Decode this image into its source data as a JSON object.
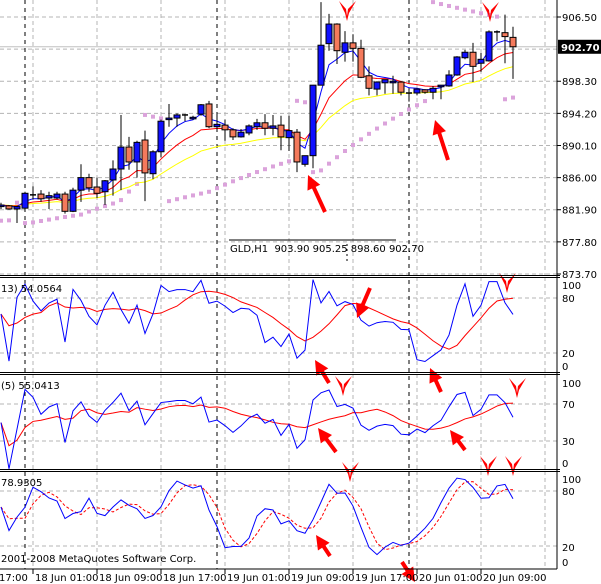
{
  "symbol_info": "GLD,H1  903.90 905.25 898.60 902.70",
  "copyright": "2001-2008 MetaQuotes Software Corp.",
  "price_axis": {
    "labels": [
      "906.50",
      "898.30",
      "894.20",
      "890.10",
      "886.00",
      "881.90",
      "877.80",
      "873.70"
    ],
    "current_price": "902.70"
  },
  "time_axis": {
    "labels": [
      "17:00",
      "18 Jun 01:00",
      "18 Jun 09:00",
      "18 Jun 17:00",
      "19 Jun 01:00",
      "19 Jun 09:00",
      "19 Jun 17:00",
      "20 Jun 01:00",
      "20 Jun 09:00"
    ]
  },
  "indicators": [
    {
      "label": "13) 54.0564",
      "axis_labels": [
        "100",
        "80",
        "20",
        "0"
      ],
      "levels": [
        20,
        80
      ]
    },
    {
      "label": "(5) 55.0413",
      "axis_labels": [
        "100",
        "70",
        "30",
        "0"
      ],
      "levels": [
        30,
        70
      ]
    },
    {
      "label": "78.9305",
      "axis_labels": [
        "100",
        "80",
        "20",
        "0"
      ],
      "levels": [
        20,
        80
      ]
    }
  ],
  "colors": {
    "bull_candle": "#1010ff",
    "bear_candle": "#f47a5c",
    "fast_ma": "#0000ff",
    "mid_ma": "#ff0000",
    "slow_ma": "#ffff00",
    "sar_dots": "#dba3db",
    "annotation_arrows": "#ff0000",
    "grid": "#b4b4b4"
  },
  "chart_data": {
    "type": "candlestick",
    "title": "GLD,H1",
    "ylim": [
      873.7,
      906.5
    ],
    "grid": true,
    "bar_interval": "1 hour",
    "ohlc_fields": [
      "open",
      "high",
      "low",
      "close"
    ],
    "ohlc": [
      [
        882.3,
        882.8,
        882.0,
        882.5
      ],
      [
        882.4,
        882.5,
        881.9,
        882.0
      ],
      [
        882.0,
        882.4,
        880.2,
        882.3
      ],
      [
        882.1,
        884.2,
        881.9,
        884.0
      ],
      [
        883.8,
        884.9,
        883.2,
        883.8
      ],
      [
        883.9,
        884.4,
        882.9,
        883.3
      ],
      [
        883.4,
        884.2,
        882.0,
        883.7
      ],
      [
        883.4,
        884.2,
        883.2,
        883.9
      ],
      [
        883.9,
        884.2,
        881.4,
        881.7
      ],
      [
        881.7,
        884.7,
        881.6,
        884.4
      ],
      [
        884.4,
        887.7,
        882.9,
        886.0
      ],
      [
        886.0,
        886.5,
        884.2,
        884.7
      ],
      [
        884.8,
        886.0,
        883.4,
        884.0
      ],
      [
        884.2,
        885.7,
        882.5,
        885.6
      ],
      [
        885.7,
        888.2,
        883.7,
        887.1
      ],
      [
        887.1,
        894.0,
        884.4,
        889.9
      ],
      [
        889.9,
        891.2,
        887.0,
        888.0
      ],
      [
        888.0,
        890.7,
        886.0,
        890.5
      ],
      [
        890.8,
        892.0,
        883.0,
        886.6
      ],
      [
        886.5,
        889.5,
        885.8,
        889.3
      ],
      [
        889.3,
        893.4,
        888.6,
        893.2
      ],
      [
        893.4,
        895.4,
        892.5,
        893.6
      ],
      [
        893.6,
        894.2,
        892.5,
        894.0
      ],
      [
        894.0,
        894.1,
        893.2,
        894.0
      ],
      [
        893.5,
        893.9,
        893.4,
        893.7
      ],
      [
        894.1,
        895.4,
        893.9,
        895.3
      ],
      [
        895.4,
        895.8,
        892.3,
        892.5
      ],
      [
        892.5,
        894.2,
        892.0,
        892.8
      ],
      [
        892.7,
        893.4,
        890.7,
        892.1
      ],
      [
        892.1,
        892.3,
        890.8,
        891.2
      ],
      [
        891.2,
        892.2,
        891.1,
        891.8
      ],
      [
        891.7,
        892.8,
        891.4,
        892.6
      ],
      [
        892.5,
        893.5,
        892.1,
        893.0
      ],
      [
        893.0,
        894.1,
        891.4,
        892.3
      ],
      [
        892.3,
        894.0,
        891.4,
        892.6
      ],
      [
        892.7,
        893.9,
        889.5,
        891.2
      ],
      [
        891.1,
        893.9,
        889.4,
        892.0
      ],
      [
        891.8,
        892.2,
        886.7,
        888.0
      ],
      [
        887.7,
        888.8,
        887.4,
        888.8
      ],
      [
        888.8,
        897.8,
        887.2,
        897.8
      ],
      [
        897.8,
        908.4,
        897.8,
        902.9
      ],
      [
        903.1,
        906.9,
        902.2,
        905.6
      ],
      [
        905.6,
        905.7,
        900.5,
        902.2
      ],
      [
        902.0,
        904.7,
        900.8,
        903.2
      ],
      [
        903.2,
        904.3,
        900.8,
        902.5
      ],
      [
        902.5,
        903.6,
        898.7,
        898.8
      ],
      [
        899.0,
        900.2,
        896.5,
        897.4
      ],
      [
        897.3,
        898.3,
        896.5,
        898.2
      ],
      [
        898.1,
        898.5,
        896.7,
        898.5
      ],
      [
        898.1,
        899.0,
        896.7,
        898.3
      ],
      [
        898.2,
        898.3,
        896.5,
        896.9
      ],
      [
        896.8,
        896.9,
        895.7,
        896.8
      ],
      [
        896.8,
        897.4,
        896.5,
        897.3
      ],
      [
        897.2,
        897.3,
        896.7,
        896.9
      ],
      [
        896.9,
        897.7,
        896.0,
        897.4
      ],
      [
        897.6,
        897.8,
        896.0,
        897.8
      ],
      [
        897.7,
        899.7,
        897.6,
        899.1
      ],
      [
        899.1,
        901.5,
        899.0,
        901.4
      ],
      [
        901.3,
        902.3,
        901.1,
        902.0
      ],
      [
        902.0,
        903.2,
        898.2,
        900.2
      ],
      [
        900.6,
        901.9,
        899.5,
        901.1
      ],
      [
        900.9,
        904.8,
        900.8,
        904.6
      ],
      [
        904.6,
        904.8,
        903.4,
        904.6
      ],
      [
        904.5,
        906.8,
        900.6,
        904.0
      ],
      [
        903.9,
        905.25,
        898.6,
        902.7
      ]
    ]
  }
}
